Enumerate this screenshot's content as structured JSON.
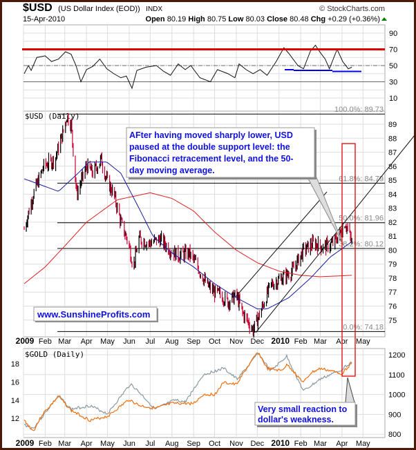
{
  "header": {
    "symbol": "$USD",
    "name": "(US Dollar Index (EOD))",
    "exchange": "INDX",
    "copyright": "© StockCharts.com",
    "date": "15-Apr-2010",
    "open_label": "Open",
    "open": "80.19",
    "high_label": "High",
    "high": "80.75",
    "low_label": "Low",
    "low": "80.03",
    "close_label": "Close",
    "close": "80.48",
    "chg_label": "Chg",
    "chg": "+0.29 (+0.36%)"
  },
  "colors": {
    "up": "#000000",
    "down": "#cc0033",
    "ma50": "#1a1aa0",
    "ma200": "#e02020",
    "rsi_limit": "#e00000",
    "rsi_support": "#0000ee",
    "gold": "#f07010",
    "other": "#8a9aa0",
    "frame": "#4d1a0a",
    "annotation": "#1010e0"
  },
  "annotations": {
    "main_note": [
      "AFter having moved sharply lower, USD",
      "paused at the double support level: the",
      "Fibonacci retracement level, and the 50-",
      "day moving average."
    ],
    "website": "www.SunshineProfits.com",
    "gold_note": [
      "Very small reaction to",
      "dollar's weakness."
    ]
  },
  "chart_data": [
    {
      "type": "line",
      "title": "RSI",
      "ylim": [
        0,
        100
      ],
      "yticks": [
        10,
        30,
        50,
        70,
        90
      ],
      "levels": {
        "overbought": 70,
        "mid": 50,
        "oversold": 30
      },
      "support_line_value": 45,
      "x": [
        "2009-01-02",
        "2009-01-08",
        "2009-01-12",
        "2009-01-20",
        "2009-02-01",
        "2009-02-10",
        "2009-02-20",
        "2009-03-02",
        "2009-03-10",
        "2009-03-17",
        "2009-03-24",
        "2009-04-01",
        "2009-04-10",
        "2009-04-20",
        "2009-04-30",
        "2009-05-10",
        "2009-05-20",
        "2009-05-28",
        "2009-06-05",
        "2009-06-12",
        "2009-06-25",
        "2009-07-10",
        "2009-07-20",
        "2009-07-30",
        "2009-08-10",
        "2009-08-20",
        "2009-08-28",
        "2009-09-10",
        "2009-09-25",
        "2009-10-05",
        "2009-10-20",
        "2009-10-30",
        "2009-11-05",
        "2009-11-15",
        "2009-11-25",
        "2009-12-05",
        "2009-12-15",
        "2009-12-28",
        "2010-01-08",
        "2010-01-15",
        "2010-01-28",
        "2010-02-05",
        "2010-02-15",
        "2010-02-22",
        "2010-03-01",
        "2010-03-08",
        "2010-03-14",
        "2010-03-25",
        "2010-04-02",
        "2010-04-10",
        "2010-04-15"
      ],
      "values": [
        40,
        50,
        44,
        60,
        62,
        55,
        58,
        67,
        64,
        50,
        30,
        45,
        49,
        58,
        46,
        40,
        35,
        37,
        22,
        44,
        48,
        50,
        43,
        38,
        52,
        45,
        50,
        35,
        30,
        45,
        40,
        35,
        52,
        45,
        40,
        45,
        38,
        55,
        72,
        65,
        50,
        46,
        68,
        75,
        66,
        58,
        46,
        70,
        55,
        46,
        48
      ]
    },
    {
      "type": "line",
      "title": "$USD (Daily)",
      "ylim": [
        74,
        90
      ],
      "yticks": [
        75,
        76,
        77,
        78,
        79,
        80,
        81,
        82,
        83,
        84,
        85,
        86,
        87,
        88,
        89
      ],
      "xticks": [
        [
          "2009-01-01",
          "2009"
        ],
        [
          "2009-02-01",
          "Feb"
        ],
        [
          "2009-03-01",
          "Mar"
        ],
        [
          "2009-04-01",
          "Apr"
        ],
        [
          "2009-05-01",
          "May"
        ],
        [
          "2009-06-01",
          "Jun"
        ],
        [
          "2009-07-01",
          "Jul"
        ],
        [
          "2009-08-01",
          "Aug"
        ],
        [
          "2009-09-01",
          "Sep"
        ],
        [
          "2009-10-01",
          "Oct"
        ],
        [
          "2009-11-01",
          "Nov"
        ],
        [
          "2009-12-01",
          "Dec"
        ],
        [
          "2010-01-01",
          "2010"
        ],
        [
          "2010-02-01",
          "Feb"
        ],
        [
          "2010-03-01",
          "Mar"
        ],
        [
          "2010-04-01",
          "Apr"
        ],
        [
          "2010-05-01",
          "May"
        ]
      ],
      "fibonacci": [
        {
          "label": "100.0%: 89.73",
          "value": 89.73
        },
        {
          "label": "61.8%: 84.79",
          "value": 84.79
        },
        {
          "label": "50.0%: 81.96",
          "value": 81.96
        },
        {
          "label": "38.2%: 80.12",
          "value": 80.12
        },
        {
          "label": "0.0%: 74.18",
          "value": 74.18
        }
      ],
      "series": [
        {
          "name": "price",
          "x": [
            "2009-01-02",
            "2009-01-15",
            "2009-01-30",
            "2009-02-15",
            "2009-02-27",
            "2009-03-04",
            "2009-03-10",
            "2009-03-18",
            "2009-03-25",
            "2009-04-01",
            "2009-04-10",
            "2009-04-22",
            "2009-04-30",
            "2009-05-10",
            "2009-05-20",
            "2009-05-31",
            "2009-06-07",
            "2009-06-15",
            "2009-06-30",
            "2009-07-15",
            "2009-07-30",
            "2009-08-10",
            "2009-08-25",
            "2009-09-05",
            "2009-09-20",
            "2009-09-30",
            "2009-10-10",
            "2009-10-20",
            "2009-11-01",
            "2009-11-10",
            "2009-11-25",
            "2009-12-05",
            "2009-12-20",
            "2010-01-05",
            "2010-01-20",
            "2010-02-05",
            "2010-02-20",
            "2010-03-05",
            "2010-03-20",
            "2010-03-31",
            "2010-04-05",
            "2010-04-10",
            "2010-04-15"
          ],
          "values": [
            81.5,
            84,
            86,
            86.5,
            88.5,
            89.6,
            89,
            84,
            85,
            86,
            85.5,
            86.5,
            85,
            84,
            82,
            80.5,
            78.8,
            80.8,
            80.5,
            80.8,
            80,
            79.6,
            79.8,
            79,
            77.5,
            77,
            76.8,
            76.3,
            76.8,
            75.5,
            74.3,
            75.5,
            77.5,
            78,
            78.5,
            80,
            80.5,
            80.2,
            80.5,
            81.3,
            82,
            81.4,
            80.5
          ]
        },
        {
          "name": "ma50",
          "x": [
            "2009-01-02",
            "2009-02-20",
            "2009-03-20",
            "2009-04-05",
            "2009-04-30",
            "2009-05-20",
            "2009-06-15",
            "2009-07-05",
            "2009-08-01",
            "2009-09-01",
            "2009-10-01",
            "2009-11-01",
            "2009-12-01",
            "2009-12-15",
            "2010-01-15",
            "2010-02-15",
            "2010-03-15",
            "2010-04-15"
          ],
          "values": [
            85.1,
            84.2,
            85.5,
            86.3,
            86.3,
            85.5,
            83,
            81,
            79.8,
            78.8,
            77.6,
            76.6,
            75.8,
            75.8,
            76.6,
            78,
            79.5,
            80.6
          ]
        },
        {
          "name": "ma200",
          "x": [
            "2009-01-02",
            "2009-02-01",
            "2009-03-01",
            "2009-04-01",
            "2009-05-15",
            "2009-07-01",
            "2009-08-01",
            "2009-09-01",
            "2009-10-01",
            "2009-11-01",
            "2009-12-01",
            "2010-01-01",
            "2010-02-01",
            "2010-03-01",
            "2010-04-15"
          ],
          "values": [
            77.6,
            78.8,
            80.3,
            82,
            83.6,
            84.1,
            83.7,
            82.8,
            81.3,
            80,
            79.1,
            78.5,
            78.2,
            78.1,
            78.2
          ]
        }
      ]
    },
    {
      "type": "line",
      "title": "$GOLD (Daily)",
      "ylim_right": [
        780,
        1230
      ],
      "yticks_right": [
        800,
        900,
        1000,
        1100,
        1200
      ],
      "yticks_left": [
        12,
        14,
        16,
        18
      ],
      "series": [
        {
          "name": "$GOLD",
          "axis": "right",
          "x": [
            "2009-01-02",
            "2009-01-15",
            "2009-01-28",
            "2009-02-20",
            "2009-03-10",
            "2009-04-06",
            "2009-05-01",
            "2009-06-01",
            "2009-06-15",
            "2009-07-08",
            "2009-08-01",
            "2009-09-01",
            "2009-09-15",
            "2009-10-01",
            "2009-10-14",
            "2009-11-01",
            "2009-11-10",
            "2009-12-02",
            "2009-12-15",
            "2010-01-04",
            "2010-01-13",
            "2010-02-05",
            "2010-02-16",
            "2010-03-01",
            "2010-03-15",
            "2010-04-01",
            "2010-04-15"
          ],
          "values": [
            870,
            815,
            900,
            990,
            920,
            870,
            890,
            975,
            945,
            930,
            955,
            955,
            1000,
            1000,
            1060,
            1050,
            1100,
            1215,
            1130,
            1120,
            1150,
            1060,
            1110,
            1130,
            1120,
            1105,
            1160
          ]
        },
        {
          "name": "comparison",
          "axis": "left",
          "x": [
            "2009-01-02",
            "2009-01-15",
            "2009-01-28",
            "2009-02-20",
            "2009-03-10",
            "2009-04-06",
            "2009-05-01",
            "2009-06-03",
            "2009-06-20",
            "2009-07-08",
            "2009-08-05",
            "2009-08-20",
            "2009-09-15",
            "2009-10-14",
            "2009-11-02",
            "2009-11-25",
            "2009-12-02",
            "2009-12-20",
            "2010-01-12",
            "2010-02-05",
            "2010-03-01",
            "2010-03-30",
            "2010-04-15"
          ],
          "values": [
            11.3,
            10.9,
            12.2,
            14.5,
            13,
            13.4,
            12.5,
            15.8,
            14.5,
            13,
            14,
            13.8,
            16.8,
            17.5,
            16.3,
            18.4,
            19.2,
            17.2,
            18.8,
            15,
            16.3,
            17.3,
            18.2
          ]
        }
      ]
    }
  ]
}
